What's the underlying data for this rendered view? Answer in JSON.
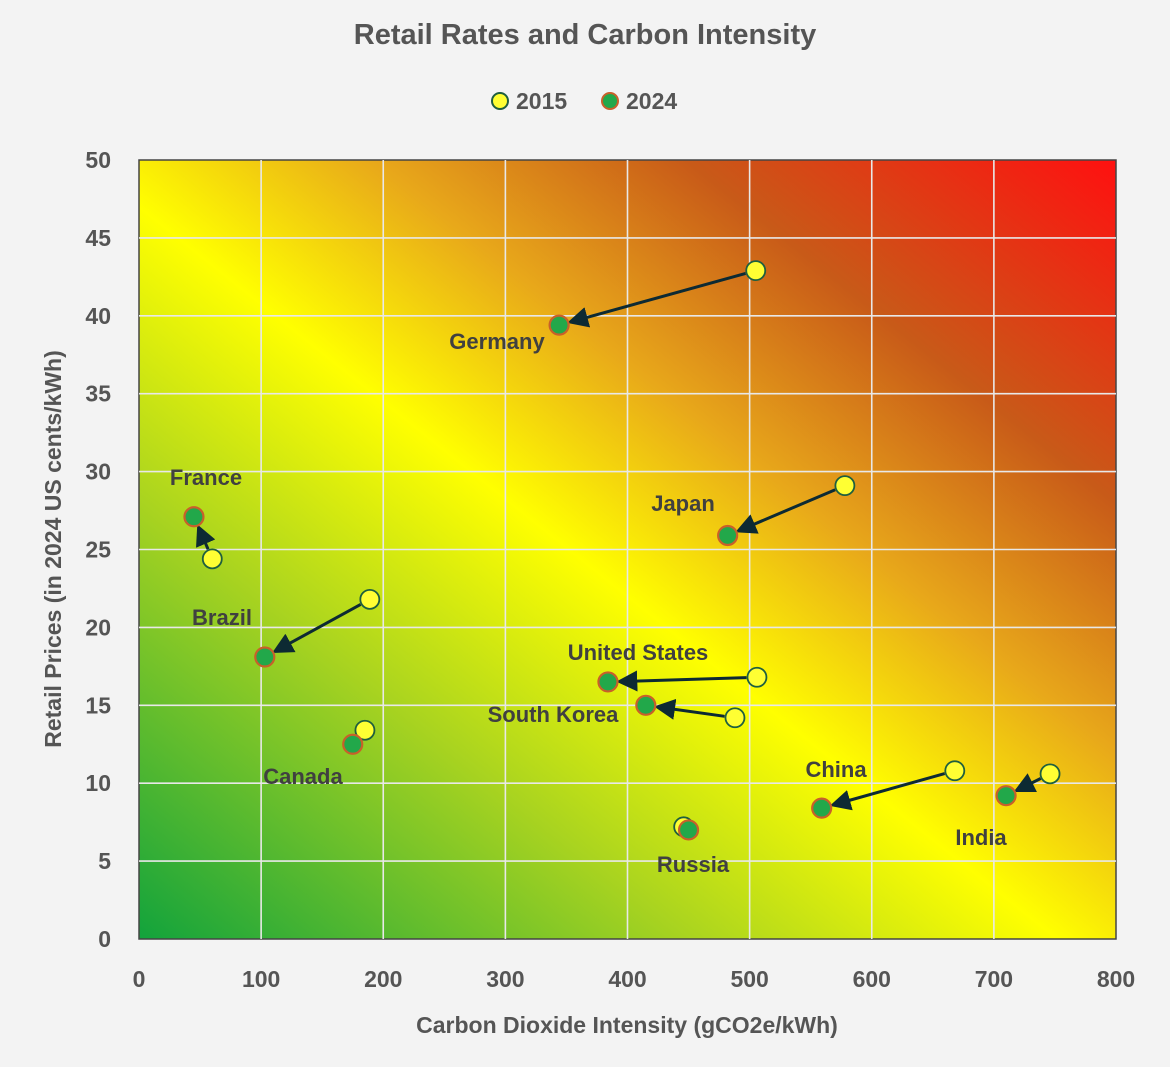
{
  "chart_data": {
    "type": "scatter",
    "title": "Retail Rates and Carbon Intensity",
    "xlabel": "Carbon Dioxide Intensity (gCO2e/kWh)",
    "ylabel": "Retail Prices (in 2024 US cents/kWh)",
    "xlim": [
      0,
      800
    ],
    "ylim": [
      0,
      50
    ],
    "xticks": [
      0,
      100,
      200,
      300,
      400,
      500,
      600,
      700,
      800
    ],
    "yticks": [
      0,
      5,
      10,
      15,
      20,
      25,
      30,
      35,
      40,
      45,
      50
    ],
    "grid": true,
    "legend_position": "top-center",
    "series": [
      {
        "name": "2015",
        "color": "#ffff33",
        "edge": "#1f5f3f"
      },
      {
        "name": "2024",
        "color": "#22a84a",
        "edge": "#c8602a"
      }
    ],
    "countries": [
      {
        "name": "Germany",
        "x2015": 505,
        "y2015": 42.9,
        "x2024": 344,
        "y2024": 39.4,
        "arrow": true
      },
      {
        "name": "France",
        "x2015": 60,
        "y2015": 24.4,
        "x2024": 45,
        "y2024": 27.1,
        "arrow": true
      },
      {
        "name": "Japan",
        "x2015": 578,
        "y2015": 29.1,
        "x2024": 482,
        "y2024": 25.9,
        "arrow": true
      },
      {
        "name": "Brazil",
        "x2015": 189,
        "y2015": 21.8,
        "x2024": 103,
        "y2024": 18.1,
        "arrow": true
      },
      {
        "name": "United States",
        "x2015": 506,
        "y2015": 16.8,
        "x2024": 384,
        "y2024": 16.5,
        "arrow": true
      },
      {
        "name": "South Korea",
        "x2015": 488,
        "y2015": 14.2,
        "x2024": 415,
        "y2024": 15.0,
        "arrow": true
      },
      {
        "name": "Canada",
        "x2015": 185,
        "y2015": 13.4,
        "x2024": 175,
        "y2024": 12.5,
        "arrow": false
      },
      {
        "name": "China",
        "x2015": 668,
        "y2015": 10.8,
        "x2024": 559,
        "y2024": 8.4,
        "arrow": true
      },
      {
        "name": "India",
        "x2015": 746,
        "y2015": 10.6,
        "x2024": 710,
        "y2024": 9.2,
        "arrow": true
      },
      {
        "name": "Russia",
        "x2015": 446,
        "y2015": 7.2,
        "x2024": 450,
        "y2024": 7.0,
        "arrow": false
      }
    ]
  }
}
